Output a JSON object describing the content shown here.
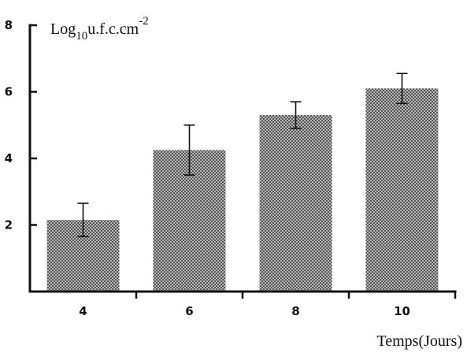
{
  "chart_data": {
    "type": "bar",
    "categories": [
      "4",
      "6",
      "8",
      "10"
    ],
    "values": [
      2.15,
      4.25,
      5.3,
      6.1
    ],
    "errors": [
      0.5,
      0.75,
      0.4,
      0.45
    ],
    "title": "",
    "ylabel": {
      "base": "Log",
      "sub": "10",
      "mid": "u.f.c.cm",
      "sup": "-2"
    },
    "xlabel": "Temps(Jours)",
    "ylim": [
      0,
      8
    ],
    "yticks": [
      "2",
      "4",
      "6",
      "8"
    ],
    "grid": false,
    "bar_pattern": "dotted-halftone",
    "colors": {
      "bar_fill": "#8f8f8f",
      "bar_dot": "#2a2a2a",
      "axis": "#111111"
    }
  }
}
